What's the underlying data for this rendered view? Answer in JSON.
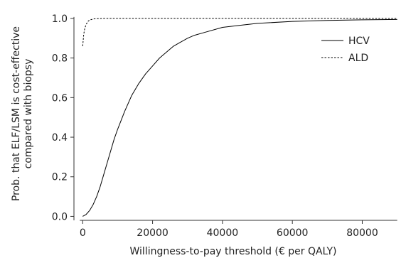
{
  "chart_data": {
    "type": "line",
    "xlabel": "Willingness-to-pay threshold (€ per QALY)",
    "ylabel": [
      "Prob. that ELF/LSM is cost-effective",
      "compared with biopsy"
    ],
    "xlim": [
      -2500,
      91500
    ],
    "ylim": [
      -0.02,
      1.05
    ],
    "x_ticks": [
      0,
      20000,
      40000,
      60000,
      80000
    ],
    "x_tick_labels": [
      "0",
      "20000",
      "40000",
      "60000",
      "80000"
    ],
    "y_ticks": [
      0.0,
      0.2,
      0.4,
      0.6,
      0.8,
      1.0
    ],
    "y_tick_labels": [
      "0.0",
      "0.2",
      "0.4",
      "0.6",
      "0.8",
      "1.0"
    ],
    "grid": false,
    "legend_position": "right",
    "series": [
      {
        "name": "HCV",
        "style": "solid",
        "x": [
          0,
          1000,
          2000,
          3000,
          4000,
          5000,
          6000,
          7000,
          8000,
          9000,
          10000,
          12000,
          14000,
          16000,
          18000,
          20000,
          22000,
          24000,
          26000,
          28000,
          30000,
          32000,
          35000,
          40000,
          45000,
          50000,
          60000,
          70000,
          80000,
          90000
        ],
        "y": [
          0.0,
          0.01,
          0.03,
          0.06,
          0.1,
          0.15,
          0.21,
          0.27,
          0.33,
          0.39,
          0.44,
          0.53,
          0.61,
          0.67,
          0.72,
          0.76,
          0.8,
          0.83,
          0.86,
          0.88,
          0.9,
          0.915,
          0.93,
          0.955,
          0.965,
          0.975,
          0.985,
          0.99,
          0.993,
          0.995
        ]
      },
      {
        "name": "ALD",
        "style": "dashed",
        "x": [
          0,
          300,
          600,
          1000,
          1500,
          2000,
          3000,
          4000,
          6000,
          10000,
          30000,
          60000,
          90000
        ],
        "y": [
          0.86,
          0.92,
          0.95,
          0.97,
          0.985,
          0.992,
          0.997,
          0.999,
          1.0,
          1.0,
          1.0,
          1.0,
          1.0
        ]
      }
    ]
  }
}
